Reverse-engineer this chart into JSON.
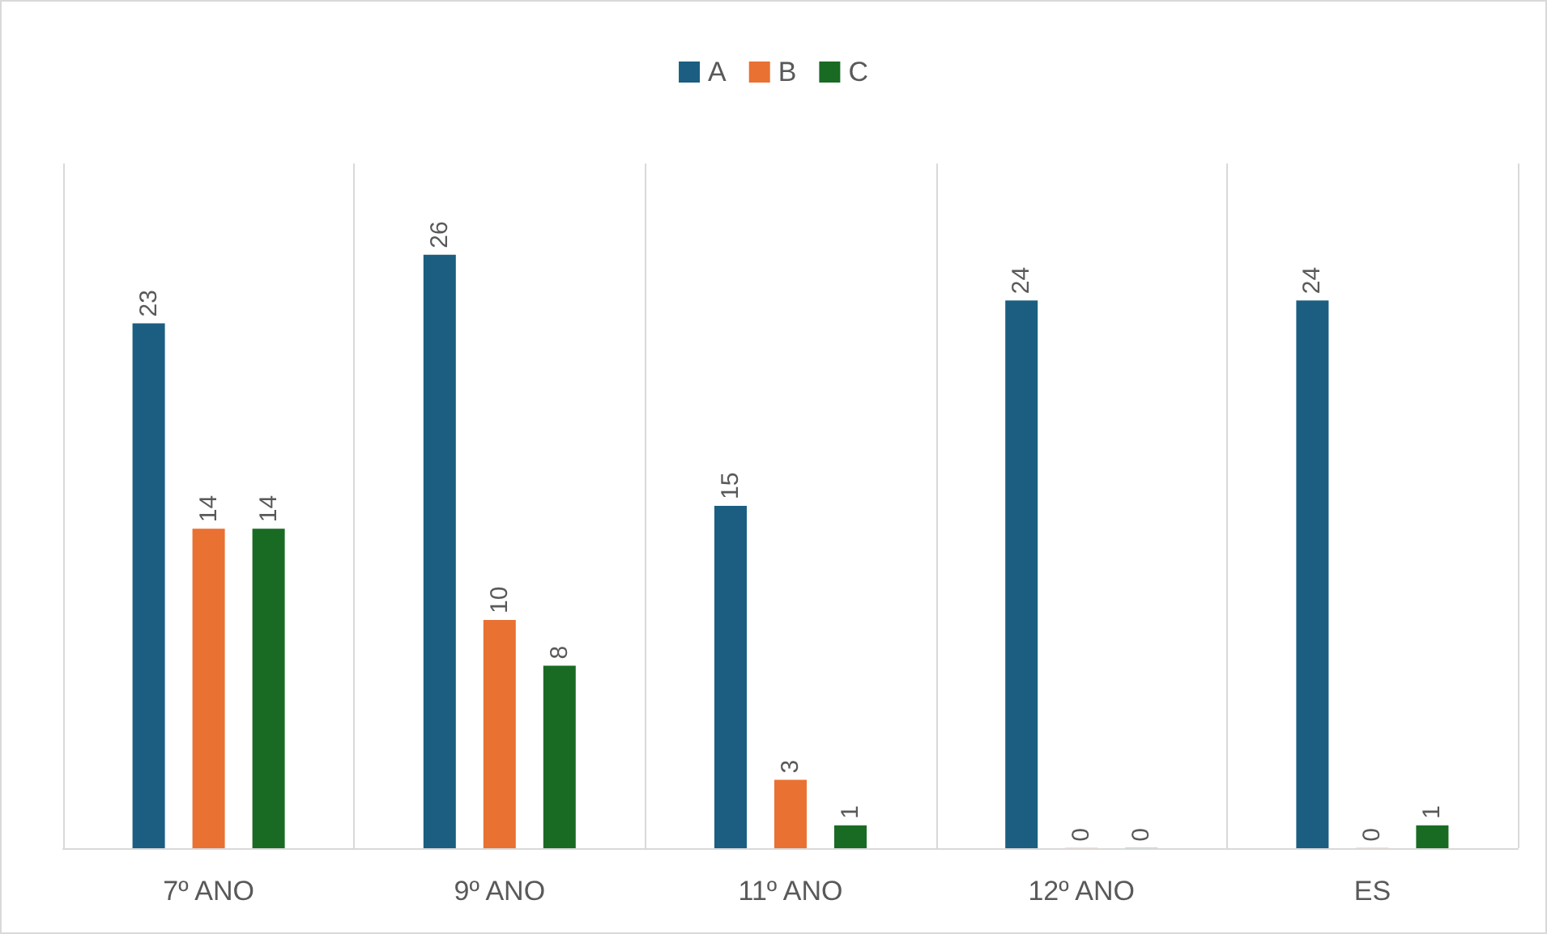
{
  "chart_data": {
    "type": "bar",
    "categories": [
      "7º ANO",
      "9º ANO",
      "11º ANO",
      "12º ANO",
      "ES"
    ],
    "series": [
      {
        "name": "A",
        "color": "#1b5e82",
        "values": [
          23,
          26,
          15,
          24,
          24
        ]
      },
      {
        "name": "B",
        "color": "#e97132",
        "values": [
          14,
          10,
          3,
          0,
          0
        ]
      },
      {
        "name": "C",
        "color": "#196b24",
        "values": [
          14,
          8,
          1,
          0,
          1
        ]
      }
    ],
    "ylim": [
      0,
      30
    ],
    "data_labels": true,
    "grid": "x",
    "legend": "top",
    "tick_labels": "x"
  }
}
